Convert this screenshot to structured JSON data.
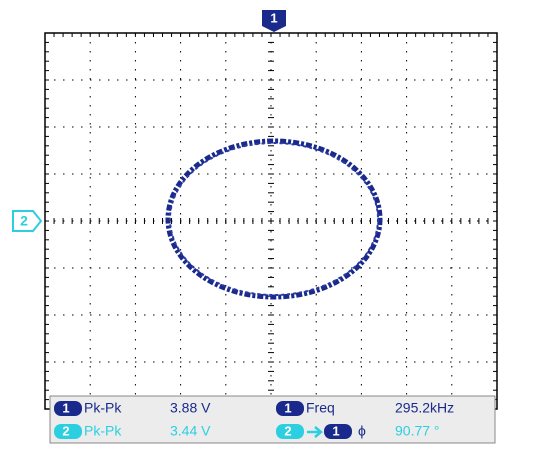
{
  "markers": {
    "channel_1": "1",
    "channel_2": "2"
  },
  "measurements": [
    {
      "badges": [
        "1"
      ],
      "label": "Pk-Pk",
      "value": "3.88 V"
    },
    {
      "badges": [
        "1"
      ],
      "label": "Freq",
      "value": "295.2kHz"
    },
    {
      "badges": [
        "2"
      ],
      "label": "Pk-Pk",
      "value": "3.44 V"
    },
    {
      "badges": [
        "2",
        "1"
      ],
      "label": "ϕ",
      "value": "90.77 °"
    }
  ]
}
